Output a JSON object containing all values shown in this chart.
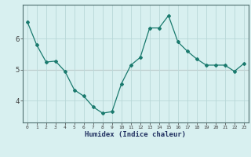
{
  "x": [
    0,
    1,
    2,
    3,
    4,
    5,
    6,
    7,
    8,
    9,
    10,
    11,
    12,
    13,
    14,
    15,
    16,
    17,
    18,
    19,
    20,
    21,
    22,
    23
  ],
  "y": [
    6.55,
    5.8,
    5.25,
    5.28,
    4.95,
    4.35,
    4.15,
    3.8,
    3.6,
    3.65,
    4.55,
    5.15,
    5.4,
    6.35,
    6.35,
    6.75,
    5.9,
    5.6,
    5.35,
    5.15,
    5.15,
    5.15,
    4.95,
    5.2
  ],
  "line_color": "#1a7a6e",
  "marker": "D",
  "marker_size": 2.0,
  "bg_color": "#d8f0f0",
  "grid_color": "#b8d8d8",
  "axis_color": "#507070",
  "tick_color": "#404040",
  "xlabel": "Humidex (Indice chaleur)",
  "xlabel_color": "#203060",
  "ylabel": "",
  "title": "",
  "xlim": [
    -0.5,
    23.5
  ],
  "ylim": [
    3.3,
    7.1
  ],
  "yticks": [
    4,
    5,
    6
  ],
  "xticks": [
    0,
    1,
    2,
    3,
    4,
    5,
    6,
    7,
    8,
    9,
    10,
    11,
    12,
    13,
    14,
    15,
    16,
    17,
    18,
    19,
    20,
    21,
    22,
    23
  ],
  "hline_color": "#d09898",
  "hline_positions": [
    5
  ],
  "figsize": [
    3.2,
    2.0
  ],
  "dpi": 100
}
